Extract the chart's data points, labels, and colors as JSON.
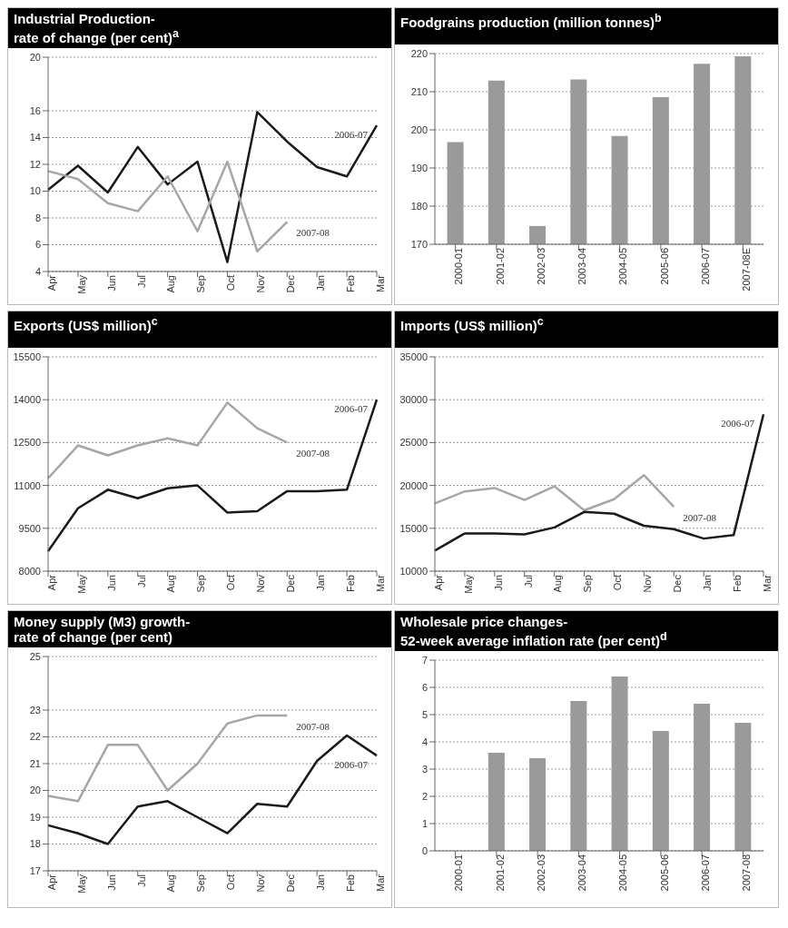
{
  "chart_data": [
    {
      "type": "line",
      "title": "Industrial Production-\nrate of change (per cent)$^{a}$",
      "categories": [
        "Apr",
        "May",
        "Jun",
        "Jul",
        "Aug",
        "Sep",
        "Oct",
        "Nov",
        "Dec",
        "Jan",
        "Feb",
        "Mar"
      ],
      "series": [
        {
          "name": "2006-07",
          "color": "#1a1a1a",
          "values": [
            10.1,
            11.9,
            9.9,
            13.3,
            10.5,
            12.2,
            4.7,
            15.9,
            13.7,
            11.8,
            11.1,
            14.9
          ]
        },
        {
          "name": "2007-08",
          "color": "#a6a6a6",
          "values": [
            11.5,
            10.9,
            9.1,
            8.5,
            11.1,
            7.0,
            12.2,
            5.5,
            7.7,
            null,
            null,
            null
          ]
        }
      ],
      "ylim": [
        4,
        20
      ],
      "yticks": [
        4,
        6,
        8,
        10,
        12,
        14,
        16,
        20
      ],
      "grid": "y",
      "marker": "none"
    },
    {
      "type": "bar",
      "title": "Foodgrains production (million tonnes)$^{b}$",
      "categories": [
        "2000-01",
        "2001-02",
        "2002-03",
        "2003-04",
        "2004-05",
        "2005-06",
        "2006-07",
        "2007-08E"
      ],
      "values": [
        196.8,
        212.9,
        174.8,
        213.2,
        198.4,
        208.6,
        217.3,
        219.3
      ],
      "color": "#9a9a9a",
      "ylim": [
        170,
        220
      ],
      "yticks": [
        170,
        180,
        190,
        200,
        210,
        220
      ],
      "grid": "y"
    },
    {
      "type": "line",
      "title": "Exports (US$ million)$^{c}$",
      "categories": [
        "Apr",
        "May",
        "Jun",
        "Jul",
        "Aug",
        "Sep",
        "Oct",
        "Nov",
        "Dec",
        "Jan",
        "Feb",
        "Mar"
      ],
      "series": [
        {
          "name": "2007-08",
          "color": "#a6a6a6",
          "values": [
            11250,
            12400,
            12050,
            12400,
            12650,
            12400,
            13900,
            13000,
            12500,
            null,
            null,
            null
          ]
        },
        {
          "name": "2006-07",
          "color": "#1a1a1a",
          "values": [
            8700,
            10200,
            10850,
            10550,
            10900,
            11000,
            10050,
            10100,
            10800,
            10800,
            10850,
            14000
          ]
        }
      ],
      "ylim": [
        8000,
        15500
      ],
      "yticks": [
        8000,
        9500,
        11000,
        12500,
        14000,
        15500
      ],
      "grid": "y",
      "marker": "none"
    },
    {
      "type": "line",
      "title": "Imports (US$ million)$^{c}$",
      "categories": [
        "Apr",
        "May",
        "Jun",
        "Jul",
        "Aug",
        "Sep",
        "Oct",
        "Nov",
        "Dec",
        "Jan",
        "Feb",
        "Mar"
      ],
      "series": [
        {
          "name": "2007-08",
          "color": "#a6a6a6",
          "values": [
            17900,
            19300,
            19700,
            18300,
            19900,
            17100,
            18400,
            21200,
            17500,
            null,
            null,
            null
          ]
        },
        {
          "name": "2006-07",
          "color": "#1a1a1a",
          "values": [
            12400,
            14400,
            14400,
            14300,
            15100,
            16900,
            16700,
            15300,
            14900,
            13800,
            14200,
            28300
          ]
        }
      ],
      "ylim": [
        10000,
        35000
      ],
      "yticks": [
        10000,
        15000,
        20000,
        25000,
        30000,
        35000
      ],
      "grid": "y",
      "marker": "none"
    },
    {
      "type": "line",
      "title": "Money supply (M3) growth-\nrate of change (per cent)",
      "categories": [
        "Apr",
        "May",
        "Jun",
        "Jul",
        "Aug",
        "Sep",
        "Oct",
        "Nov",
        "Dec",
        "Jan",
        "Feb",
        "Mar"
      ],
      "series": [
        {
          "name": "2007-08",
          "color": "#a6a6a6",
          "values": [
            19.8,
            19.6,
            21.7,
            21.7,
            20.0,
            21.0,
            22.5,
            22.8,
            22.8,
            null,
            null,
            null
          ]
        },
        {
          "name": "2006-07",
          "color": "#1a1a1a",
          "values": [
            18.7,
            18.4,
            18.0,
            19.4,
            19.6,
            19.0,
            18.4,
            19.5,
            19.4,
            21.1,
            22.05,
            21.3
          ]
        }
      ],
      "ylim": [
        17,
        25
      ],
      "yticks": [
        17,
        18,
        19,
        20,
        21,
        22,
        23,
        25
      ],
      "grid": "y",
      "marker": "none"
    },
    {
      "type": "bar",
      "title": "Wholesale price changes-\n52-week average inflation rate (per cent)$^{d}$",
      "categories": [
        "2000-01",
        "2001-02",
        "2002-03",
        "2003-04",
        "2004-05",
        "2005-06",
        "2006-07",
        "2007-08"
      ],
      "values": [
        null,
        3.6,
        3.4,
        5.5,
        6.4,
        4.4,
        5.4,
        4.7
      ],
      "color": "#9a9a9a",
      "ylim": [
        0,
        7
      ],
      "yticks": [
        0,
        1,
        2,
        3,
        4,
        5,
        6,
        7
      ],
      "grid": "y"
    }
  ]
}
